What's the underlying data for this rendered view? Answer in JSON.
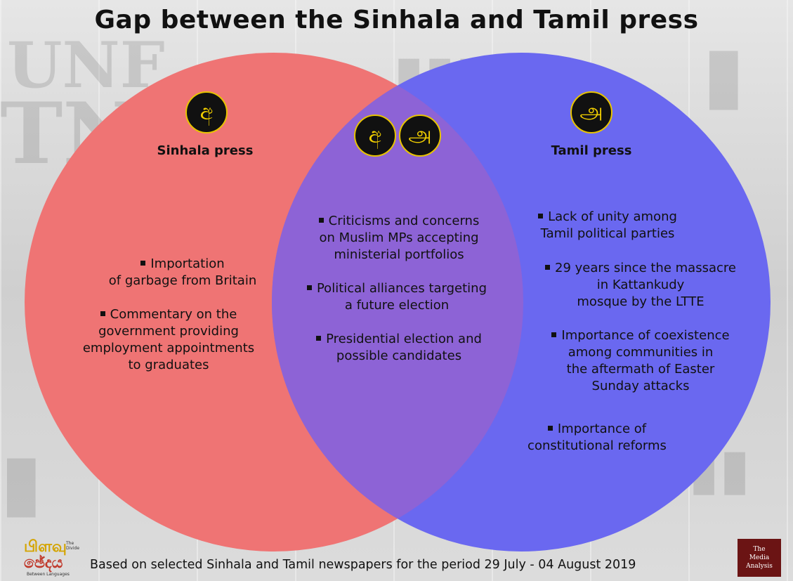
{
  "title": "Gap between the Sinhala and Tamil press",
  "circles": {
    "left_color": "#ef7474",
    "right_color": "#6a68f0",
    "overlap_color": "#8d63d6"
  },
  "badges": {
    "sinhala_glyph": "අ",
    "tamil_glyph": "அ"
  },
  "sinhala": {
    "heading": "Sinhala press",
    "items": [
      [
        "Importation",
        "of garbage from Britain"
      ],
      [
        "Commentary on the",
        "government providing",
        "employment appointments",
        "to graduates"
      ]
    ]
  },
  "common": {
    "items": [
      [
        "Criticisms and concerns",
        "on Muslim MPs accepting",
        "ministerial portfolios"
      ],
      [
        "Political alliances targeting",
        "a future election"
      ],
      [
        "Presidential election and",
        "possible candidates"
      ]
    ]
  },
  "tamil": {
    "heading": "Tamil press",
    "items": [
      [
        "Lack of unity among",
        "Tamil political parties"
      ],
      [
        "29 years since the massacre",
        "in Kattankudy",
        "mosque by the LTTE"
      ],
      [
        "Importance of coexistence",
        "among communities in",
        "the aftermath of Easter",
        "Sunday attacks"
      ],
      [
        "Importance of",
        "constitutional reforms"
      ]
    ]
  },
  "footer": {
    "source": "Based on selected Sinhala and Tamil newspapers for the period 29 July - 04 August 2019",
    "logo_left_line1": "பிளவு",
    "logo_left_line2": "ඡේදය",
    "logo_left_tag1": "The Divide",
    "logo_left_tag2": "Between Languages",
    "logo_right_line1": "The",
    "logo_right_line2": "Media",
    "logo_right_line3": "Analysis"
  }
}
